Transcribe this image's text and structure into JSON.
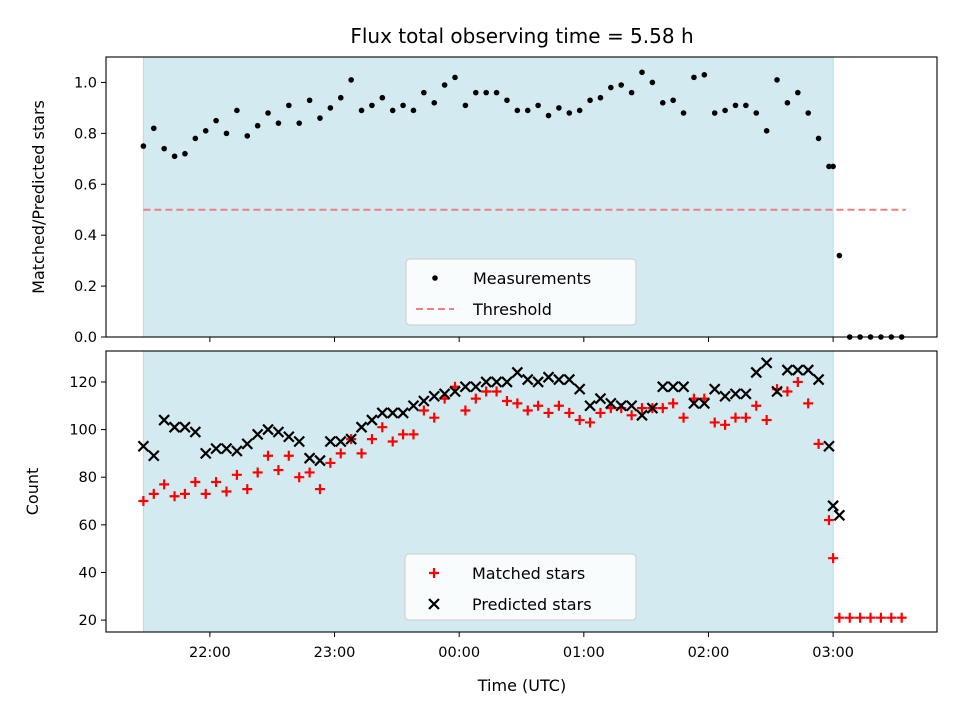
{
  "chart_data": [
    {
      "type": "scatter",
      "title": "Flux total observing time = 5.58 h",
      "xlabel": "",
      "ylabel": "Matched/Predicted stars",
      "ylim": [
        0.0,
        1.1
      ],
      "yticks": [
        "0.0",
        "0.2",
        "0.4",
        "0.6",
        "0.8",
        "1.0"
      ],
      "ytick_values": [
        0.0,
        0.2,
        0.4,
        0.6,
        0.8,
        1.0
      ],
      "legend_placement": "lower-center",
      "observing_window": {
        "start": "21:28",
        "end": "03:00",
        "color": "#d3eaf1"
      },
      "threshold": {
        "name": "Threshold",
        "value": 0.5,
        "x_start": "21:28",
        "x_end": "03:35",
        "color": "#f08080"
      },
      "series": [
        {
          "name": "Measurements",
          "marker": "dot",
          "color": "#000000",
          "points": [
            [
              "21:28",
              0.75
            ],
            [
              "21:33",
              0.82
            ],
            [
              "21:38",
              0.74
            ],
            [
              "21:43",
              0.71
            ],
            [
              "21:48",
              0.72
            ],
            [
              "21:53",
              0.78
            ],
            [
              "21:58",
              0.81
            ],
            [
              "22:03",
              0.85
            ],
            [
              "22:08",
              0.8
            ],
            [
              "22:13",
              0.89
            ],
            [
              "22:18",
              0.79
            ],
            [
              "22:23",
              0.83
            ],
            [
              "22:28",
              0.88
            ],
            [
              "22:33",
              0.84
            ],
            [
              "22:38",
              0.91
            ],
            [
              "22:43",
              0.84
            ],
            [
              "22:48",
              0.93
            ],
            [
              "22:53",
              0.86
            ],
            [
              "22:58",
              0.9
            ],
            [
              "23:03",
              0.94
            ],
            [
              "23:08",
              1.01
            ],
            [
              "23:13",
              0.89
            ],
            [
              "23:18",
              0.91
            ],
            [
              "23:23",
              0.94
            ],
            [
              "23:28",
              0.89
            ],
            [
              "23:33",
              0.91
            ],
            [
              "23:38",
              0.89
            ],
            [
              "23:43",
              0.96
            ],
            [
              "23:48",
              0.92
            ],
            [
              "23:53",
              0.99
            ],
            [
              "23:58",
              1.02
            ],
            [
              "00:03",
              0.91
            ],
            [
              "00:08",
              0.96
            ],
            [
              "00:13",
              0.96
            ],
            [
              "00:18",
              0.96
            ],
            [
              "00:23",
              0.93
            ],
            [
              "00:28",
              0.89
            ],
            [
              "00:33",
              0.89
            ],
            [
              "00:38",
              0.91
            ],
            [
              "00:43",
              0.87
            ],
            [
              "00:48",
              0.9
            ],
            [
              "00:53",
              0.88
            ],
            [
              "00:58",
              0.89
            ],
            [
              "01:03",
              0.93
            ],
            [
              "01:08",
              0.94
            ],
            [
              "01:13",
              0.98
            ],
            [
              "01:18",
              0.99
            ],
            [
              "01:23",
              0.96
            ],
            [
              "01:28",
              1.04
            ],
            [
              "01:33",
              1.0
            ],
            [
              "01:38",
              0.92
            ],
            [
              "01:43",
              0.93
            ],
            [
              "01:48",
              0.88
            ],
            [
              "01:53",
              1.02
            ],
            [
              "01:58",
              1.03
            ],
            [
              "02:03",
              0.88
            ],
            [
              "02:08",
              0.89
            ],
            [
              "02:13",
              0.91
            ],
            [
              "02:18",
              0.91
            ],
            [
              "02:23",
              0.88
            ],
            [
              "02:28",
              0.81
            ],
            [
              "02:33",
              1.01
            ],
            [
              "02:38",
              0.92
            ],
            [
              "02:43",
              0.96
            ],
            [
              "02:48",
              0.88
            ],
            [
              "02:53",
              0.78
            ],
            [
              "02:58",
              0.67
            ],
            [
              "03:00",
              0.67
            ],
            [
              "03:03",
              0.32
            ],
            [
              "03:08",
              0.0
            ],
            [
              "03:13",
              0.0
            ],
            [
              "03:18",
              0.0
            ],
            [
              "03:23",
              0.0
            ],
            [
              "03:28",
              0.0
            ],
            [
              "03:33",
              0.0
            ]
          ]
        }
      ]
    },
    {
      "type": "scatter",
      "title": "",
      "xlabel": "Time (UTC)",
      "ylabel": "Count",
      "ylim": [
        15,
        133
      ],
      "yticks": [
        "20",
        "40",
        "60",
        "80",
        "100",
        "120"
      ],
      "ytick_values": [
        20,
        40,
        60,
        80,
        100,
        120
      ],
      "xticks": [
        "22:00",
        "23:00",
        "00:00",
        "01:00",
        "02:00",
        "03:00"
      ],
      "x_range": [
        "21:10",
        "03:50"
      ],
      "legend_placement": "lower-center",
      "series": [
        {
          "name": "Matched stars",
          "marker": "plus",
          "color": "#ff0000",
          "points": [
            [
              "21:28",
              70
            ],
            [
              "21:33",
              73
            ],
            [
              "21:38",
              77
            ],
            [
              "21:43",
              72
            ],
            [
              "21:48",
              73
            ],
            [
              "21:53",
              78
            ],
            [
              "21:58",
              73
            ],
            [
              "22:03",
              78
            ],
            [
              "22:08",
              74
            ],
            [
              "22:13",
              81
            ],
            [
              "22:18",
              75
            ],
            [
              "22:23",
              82
            ],
            [
              "22:28",
              89
            ],
            [
              "22:33",
              83
            ],
            [
              "22:38",
              89
            ],
            [
              "22:43",
              80
            ],
            [
              "22:48",
              82
            ],
            [
              "22:53",
              75
            ],
            [
              "22:58",
              86
            ],
            [
              "23:03",
              90
            ],
            [
              "23:08",
              96
            ],
            [
              "23:13",
              90
            ],
            [
              "23:18",
              96
            ],
            [
              "23:23",
              101
            ],
            [
              "23:28",
              95
            ],
            [
              "23:33",
              98
            ],
            [
              "23:38",
              98
            ],
            [
              "23:43",
              108
            ],
            [
              "23:48",
              105
            ],
            [
              "23:53",
              113
            ],
            [
              "23:58",
              118
            ],
            [
              "00:03",
              108
            ],
            [
              "00:08",
              113
            ],
            [
              "00:13",
              116
            ],
            [
              "00:18",
              116
            ],
            [
              "00:23",
              112
            ],
            [
              "00:28",
              111
            ],
            [
              "00:33",
              108
            ],
            [
              "00:38",
              110
            ],
            [
              "00:43",
              107
            ],
            [
              "00:48",
              110
            ],
            [
              "00:53",
              107
            ],
            [
              "00:58",
              104
            ],
            [
              "01:03",
              103
            ],
            [
              "01:08",
              107
            ],
            [
              "01:13",
              109
            ],
            [
              "01:18",
              109
            ],
            [
              "01:23",
              106
            ],
            [
              "01:28",
              109
            ],
            [
              "01:33",
              109
            ],
            [
              "01:38",
              109
            ],
            [
              "01:43",
              111
            ],
            [
              "01:48",
              105
            ],
            [
              "01:53",
              113
            ],
            [
              "01:58",
              113
            ],
            [
              "02:03",
              103
            ],
            [
              "02:08",
              102
            ],
            [
              "02:13",
              105
            ],
            [
              "02:18",
              105
            ],
            [
              "02:23",
              110
            ],
            [
              "02:28",
              104
            ],
            [
              "02:33",
              117
            ],
            [
              "02:38",
              116
            ],
            [
              "02:43",
              120
            ],
            [
              "02:48",
              111
            ],
            [
              "02:53",
              94
            ],
            [
              "02:58",
              62
            ],
            [
              "03:00",
              46
            ],
            [
              "03:03",
              21
            ],
            [
              "03:08",
              21
            ],
            [
              "03:13",
              21
            ],
            [
              "03:18",
              21
            ],
            [
              "03:23",
              21
            ],
            [
              "03:28",
              21
            ],
            [
              "03:33",
              21
            ]
          ]
        },
        {
          "name": "Predicted stars",
          "marker": "x",
          "color": "#000000",
          "points": [
            [
              "21:28",
              93
            ],
            [
              "21:33",
              89
            ],
            [
              "21:38",
              104
            ],
            [
              "21:43",
              101
            ],
            [
              "21:48",
              101
            ],
            [
              "21:53",
              99
            ],
            [
              "21:58",
              90
            ],
            [
              "22:03",
              92
            ],
            [
              "22:08",
              92
            ],
            [
              "22:13",
              91
            ],
            [
              "22:18",
              94
            ],
            [
              "22:23",
              98
            ],
            [
              "22:28",
              100
            ],
            [
              "22:33",
              99
            ],
            [
              "22:38",
              97
            ],
            [
              "22:43",
              95
            ],
            [
              "22:48",
              88
            ],
            [
              "22:53",
              87
            ],
            [
              "22:58",
              95
            ],
            [
              "23:03",
              95
            ],
            [
              "23:08",
              96
            ],
            [
              "23:13",
              101
            ],
            [
              "23:18",
              104
            ],
            [
              "23:23",
              107
            ],
            [
              "23:28",
              107
            ],
            [
              "23:33",
              107
            ],
            [
              "23:38",
              110
            ],
            [
              "23:43",
              112
            ],
            [
              "23:48",
              114
            ],
            [
              "23:53",
              115
            ],
            [
              "23:58",
              116
            ],
            [
              "00:03",
              118
            ],
            [
              "00:08",
              118
            ],
            [
              "00:13",
              120
            ],
            [
              "00:18",
              120
            ],
            [
              "00:23",
              120
            ],
            [
              "00:28",
              124
            ],
            [
              "00:33",
              121
            ],
            [
              "00:38",
              120
            ],
            [
              "00:43",
              122
            ],
            [
              "00:48",
              121
            ],
            [
              "00:53",
              121
            ],
            [
              "00:58",
              117
            ],
            [
              "01:03",
              110
            ],
            [
              "01:08",
              113
            ],
            [
              "01:13",
              111
            ],
            [
              "01:18",
              110
            ],
            [
              "01:23",
              110
            ],
            [
              "01:28",
              106
            ],
            [
              "01:33",
              109
            ],
            [
              "01:38",
              118
            ],
            [
              "01:43",
              118
            ],
            [
              "01:48",
              118
            ],
            [
              "01:53",
              111
            ],
            [
              "01:58",
              111
            ],
            [
              "02:03",
              117
            ],
            [
              "02:08",
              114
            ],
            [
              "02:13",
              115
            ],
            [
              "02:18",
              115
            ],
            [
              "02:23",
              124
            ],
            [
              "02:28",
              128
            ],
            [
              "02:33",
              116
            ],
            [
              "02:38",
              125
            ],
            [
              "02:43",
              125
            ],
            [
              "02:48",
              125
            ],
            [
              "02:53",
              121
            ],
            [
              "02:58",
              93
            ],
            [
              "03:00",
              68
            ],
            [
              "03:03",
              64
            ]
          ]
        }
      ]
    }
  ]
}
